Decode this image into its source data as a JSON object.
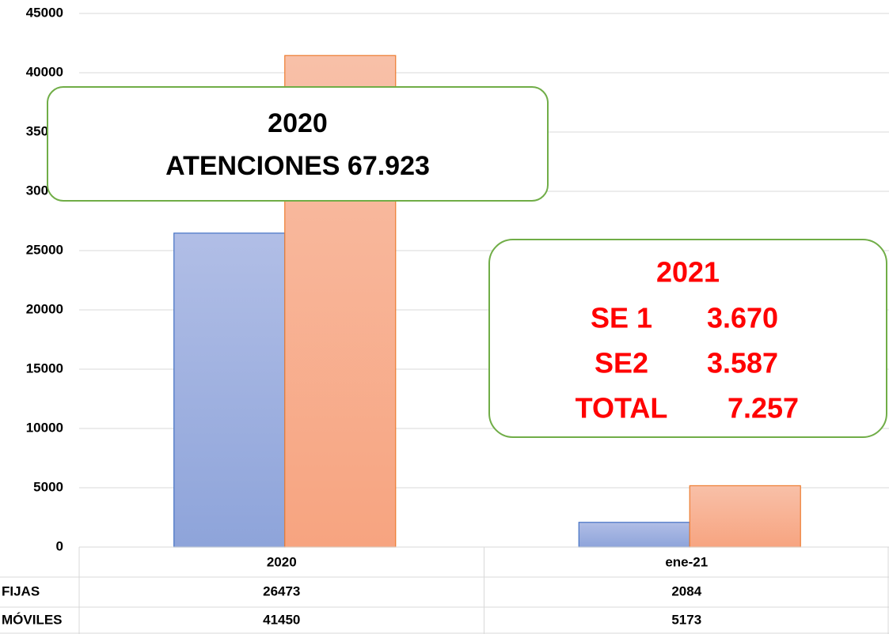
{
  "chart_data": {
    "type": "bar",
    "categories": [
      "2020",
      "ene-21"
    ],
    "series": [
      {
        "name": "FIJAS",
        "color": "#8ea4da",
        "values": [
          26473,
          2084
        ]
      },
      {
        "name": "MÓVILES",
        "color": "#f7a480",
        "values": [
          41450,
          5173
        ]
      }
    ],
    "ylim": [
      0,
      45000
    ],
    "yticks": [
      0,
      5000,
      10000,
      15000,
      20000,
      25000,
      30000,
      35000,
      40000,
      45000
    ],
    "grid": true,
    "annotations": [
      {
        "title": "2020",
        "lines": [
          "ATENCIONES 67.923"
        ]
      },
      {
        "title": "2021",
        "rows": [
          [
            "SE 1",
            "3.670"
          ],
          [
            "SE2",
            "3.587"
          ],
          [
            "TOTAL",
            "7.257"
          ]
        ]
      }
    ]
  }
}
